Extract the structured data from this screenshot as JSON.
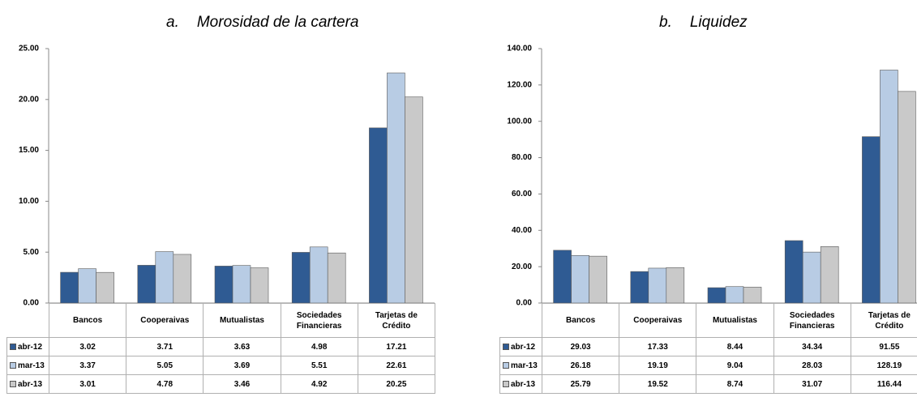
{
  "chart_data": [
    {
      "type": "bar",
      "label": "a.",
      "title": "Morosidad de la cartera",
      "categories": [
        "Bancos",
        "Cooperaivas",
        "Mutualistas",
        "Sociedades Financieras",
        "Tarjetas de Crédito"
      ],
      "series": [
        {
          "name": "abr-12",
          "color": "#2f5b93",
          "values": [
            3.02,
            3.71,
            3.63,
            4.98,
            17.21
          ]
        },
        {
          "name": "mar-13",
          "color": "#b8cce4",
          "values": [
            3.37,
            5.05,
            3.69,
            5.51,
            22.61
          ]
        },
        {
          "name": "abr-13",
          "color": "#c9c9c9",
          "values": [
            3.01,
            4.78,
            3.46,
            4.92,
            20.25
          ]
        }
      ],
      "ylim": [
        0,
        25
      ],
      "yticks": [
        {
          "value": 0,
          "label": "0.00"
        },
        {
          "value": 5,
          "label": "5.00"
        },
        {
          "value": 10,
          "label": "10.00"
        },
        {
          "value": 15,
          "label": "15.00"
        },
        {
          "value": 20,
          "label": "20.00"
        },
        {
          "value": 25,
          "label": "25.00"
        }
      ]
    },
    {
      "type": "bar",
      "label": "b.",
      "title": "Liquidez",
      "categories": [
        "Bancos",
        "Cooperaivas",
        "Mutualistas",
        "Sociedades Financieras",
        "Tarjetas de Crédito"
      ],
      "series": [
        {
          "name": "abr-12",
          "color": "#2f5b93",
          "values": [
            29.03,
            17.33,
            8.44,
            34.34,
            91.55
          ]
        },
        {
          "name": "mar-13",
          "color": "#b8cce4",
          "values": [
            26.18,
            19.19,
            9.04,
            28.03,
            128.19
          ]
        },
        {
          "name": "abr-13",
          "color": "#c9c9c9",
          "values": [
            25.79,
            19.52,
            8.74,
            31.07,
            116.44
          ]
        }
      ],
      "ylim": [
        0,
        140
      ],
      "yticks": [
        {
          "value": 0,
          "label": "0.00"
        },
        {
          "value": 20,
          "label": "20.00"
        },
        {
          "value": 40,
          "label": "40.00"
        },
        {
          "value": 60,
          "label": "60.00"
        },
        {
          "value": 80,
          "label": "80.00"
        },
        {
          "value": 100,
          "label": "100.00"
        },
        {
          "value": 120,
          "label": "120.00"
        },
        {
          "value": 140,
          "label": "140.00"
        }
      ]
    }
  ]
}
